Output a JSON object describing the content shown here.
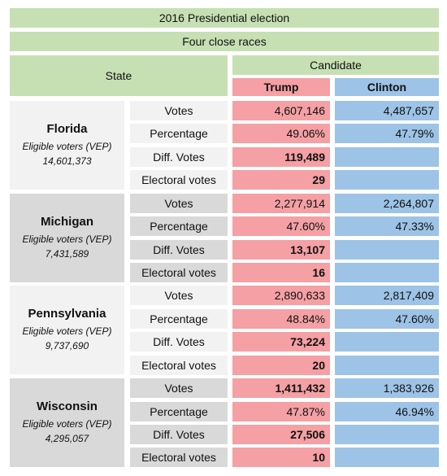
{
  "title": "2016 Presidential election",
  "subtitle": "Four close races",
  "headers": {
    "state": "State",
    "candidate": "Candidate",
    "trump": "Trump",
    "clinton": "Clinton"
  },
  "metrics": [
    "Votes",
    "Percentage",
    "Diff. Votes",
    "Electoral votes"
  ],
  "states": [
    {
      "name": "Florida",
      "vep_label": "Eligible voters (VEP)",
      "vep": "14,601,373",
      "votes_trump": "4,607,146",
      "votes_clinton": "4,487,657",
      "pct_trump": "49.06%",
      "pct_clinton": "47.79%",
      "diff": "119,489",
      "electoral": "29",
      "trump_votes_bold": false
    },
    {
      "name": "Michigan",
      "vep_label": "Eligible voters (VEP)",
      "vep": "7,431,589",
      "votes_trump": "2,277,914",
      "votes_clinton": "2,264,807",
      "pct_trump": "47.60%",
      "pct_clinton": "47.33%",
      "diff": "13,107",
      "electoral": "16",
      "trump_votes_bold": false
    },
    {
      "name": "Pennsylvania",
      "vep_label": "Eligible voters (VEP)",
      "vep": "9,737,690",
      "votes_trump": "2,890,633",
      "votes_clinton": "2,817,409",
      "pct_trump": "48.84%",
      "pct_clinton": "47.60%",
      "diff": "73,224",
      "electoral": "20",
      "trump_votes_bold": false
    },
    {
      "name": "Wisconsin",
      "vep_label": "Eligible voters (VEP)",
      "vep": "4,295,057",
      "votes_trump": "1,411,432",
      "votes_clinton": "1,383,926",
      "pct_trump": "47.87%",
      "pct_clinton": "46.94%",
      "diff": "27,506",
      "electoral": "10",
      "trump_votes_bold": true
    }
  ],
  "colors": {
    "header_green": "#c6e0b4",
    "trump": "#f4a0a4",
    "clinton": "#9dc3e6",
    "state_light": "#f2f2f2",
    "state_dark": "#d9d9d9"
  }
}
